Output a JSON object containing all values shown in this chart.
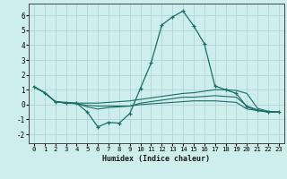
{
  "xlabel": "Humidex (Indice chaleur)",
  "background_color": "#ceeeed",
  "grid_color": "#aed4d3",
  "line_color": "#1a6e65",
  "xlim": [
    -0.5,
    23.5
  ],
  "ylim": [
    -2.6,
    6.8
  ],
  "xticks": [
    0,
    1,
    2,
    3,
    4,
    5,
    6,
    7,
    8,
    9,
    10,
    11,
    12,
    13,
    14,
    15,
    16,
    17,
    18,
    19,
    20,
    21,
    22,
    23
  ],
  "yticks": [
    -2,
    -1,
    0,
    1,
    2,
    3,
    4,
    5,
    6
  ],
  "line1_x": [
    0,
    1,
    2,
    3,
    4,
    5,
    6,
    7,
    8,
    9,
    10,
    11,
    12,
    13,
    14,
    15,
    16,
    17,
    18,
    19,
    20,
    21,
    22,
    23
  ],
  "line1_y": [
    1.2,
    0.8,
    0.2,
    0.1,
    0.1,
    -0.5,
    -1.5,
    -1.2,
    -1.25,
    -0.6,
    1.1,
    2.8,
    5.35,
    5.9,
    6.3,
    5.3,
    4.1,
    1.25,
    1.0,
    0.75,
    -0.15,
    -0.4,
    -0.5,
    -0.5
  ],
  "line2_x": [
    0,
    1,
    2,
    3,
    4,
    5,
    6,
    7,
    8,
    9,
    10,
    11,
    12,
    13,
    14,
    15,
    16,
    17,
    18,
    19,
    20,
    21,
    22,
    23
  ],
  "line2_y": [
    1.2,
    0.8,
    0.2,
    0.15,
    0.1,
    0.1,
    0.1,
    0.15,
    0.2,
    0.25,
    0.35,
    0.45,
    0.55,
    0.65,
    0.75,
    0.8,
    0.9,
    1.0,
    1.0,
    0.95,
    0.75,
    -0.25,
    -0.45,
    -0.5
  ],
  "line3_x": [
    0,
    1,
    2,
    3,
    4,
    5,
    6,
    7,
    8,
    9,
    10,
    11,
    12,
    13,
    14,
    15,
    16,
    17,
    18,
    19,
    20,
    21,
    22,
    23
  ],
  "line3_y": [
    1.2,
    0.8,
    0.2,
    0.1,
    0.05,
    -0.05,
    -0.1,
    -0.1,
    -0.1,
    -0.1,
    0.0,
    0.05,
    0.1,
    0.15,
    0.2,
    0.25,
    0.25,
    0.25,
    0.2,
    0.15,
    -0.3,
    -0.4,
    -0.5,
    -0.5
  ],
  "line4_x": [
    0,
    1,
    2,
    3,
    4,
    5,
    6,
    7,
    8,
    9,
    10,
    11,
    12,
    13,
    14,
    15,
    16,
    17,
    18,
    19,
    20,
    21,
    22,
    23
  ],
  "line4_y": [
    1.2,
    0.8,
    0.2,
    0.1,
    0.08,
    -0.15,
    -0.3,
    -0.2,
    -0.15,
    -0.1,
    0.1,
    0.2,
    0.3,
    0.4,
    0.5,
    0.5,
    0.55,
    0.6,
    0.55,
    0.5,
    -0.1,
    -0.35,
    -0.5,
    -0.5
  ]
}
